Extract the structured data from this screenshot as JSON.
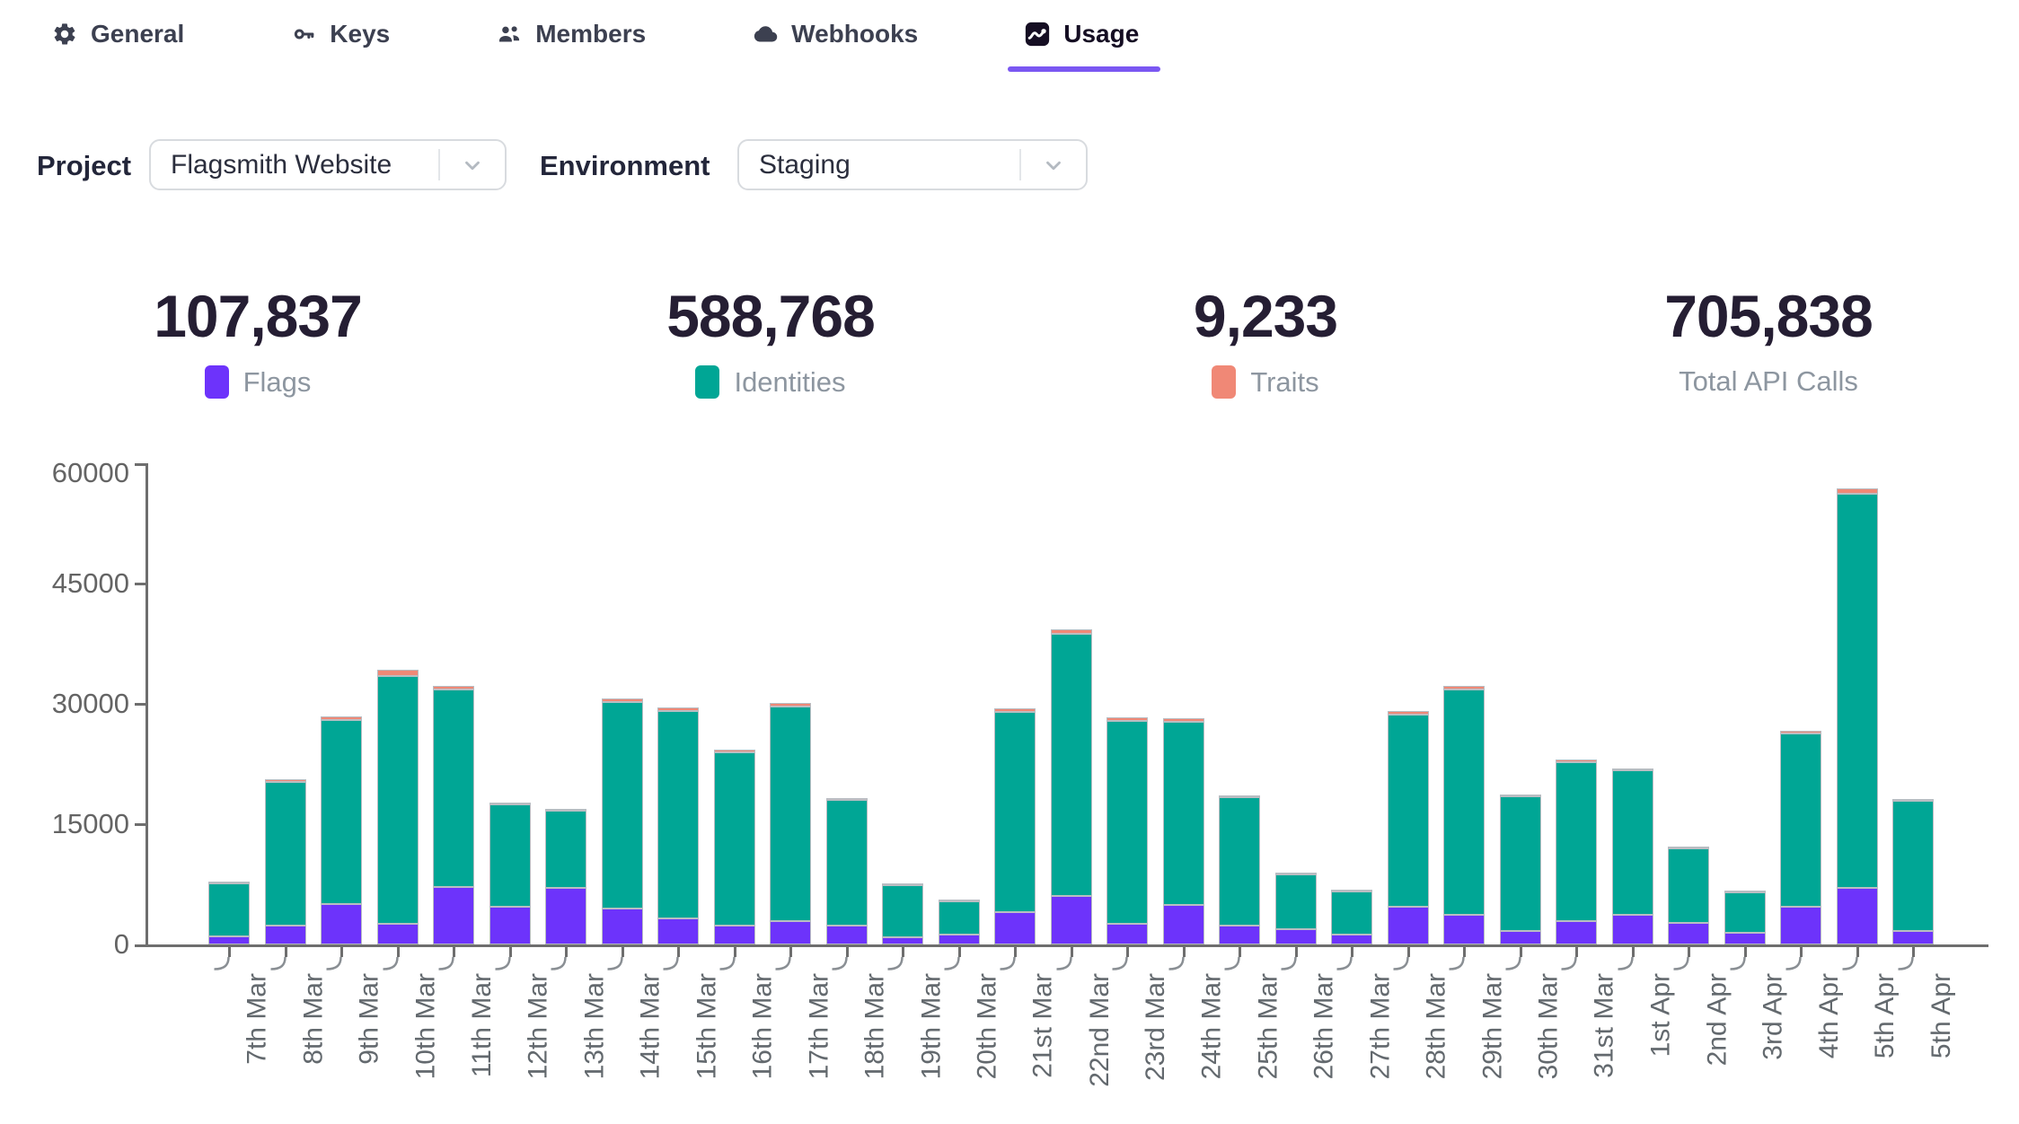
{
  "accent_color": "#7a57f2",
  "tabs": [
    {
      "label": "General",
      "icon": "gear-icon"
    },
    {
      "label": "Keys",
      "icon": "key-icon"
    },
    {
      "label": "Members",
      "icon": "members-icon"
    },
    {
      "label": "Webhooks",
      "icon": "cloud-icon"
    },
    {
      "label": "Usage",
      "icon": "chart-icon",
      "active": true
    }
  ],
  "filters": {
    "project_label": "Project",
    "project_value": "Flagsmith Website",
    "environment_label": "Environment",
    "environment_value": "Staging"
  },
  "stats": [
    {
      "value": "107,837",
      "label": "Flags",
      "swatch": "#6d33fb"
    },
    {
      "value": "588,768",
      "label": "Identities",
      "swatch": "#00a695"
    },
    {
      "value": "9,233",
      "label": "Traits",
      "swatch": "#f08876"
    },
    {
      "value": "705,838",
      "label": "Total API Calls",
      "swatch": null
    }
  ],
  "chart_data": {
    "type": "bar",
    "stacked": true,
    "title": "",
    "xlabel": "",
    "ylabel": "",
    "ylim": [
      0,
      60000
    ],
    "yticks": [
      0,
      15000,
      30000,
      45000,
      60000
    ],
    "grid": false,
    "legend_position": "above-chart (stat captions)",
    "categories": [
      "7th Mar",
      "8th Mar",
      "9th Mar",
      "10th Mar",
      "11th Mar",
      "12th Mar",
      "13th Mar",
      "14th Mar",
      "15th Mar",
      "16th Mar",
      "17th Mar",
      "18th Mar",
      "19th Mar",
      "20th Mar",
      "21st Mar",
      "22nd Mar",
      "23rd Mar",
      "24th Mar",
      "25th Mar",
      "26th Mar",
      "27th Mar",
      "28th Mar",
      "29th Mar",
      "30th Mar",
      "31st Mar",
      "1st Apr",
      "2nd Apr",
      "3rd Apr",
      "4th Apr",
      "5th Apr",
      "5th Apr"
    ],
    "series": [
      {
        "name": "Flags",
        "color": "#6d33fb",
        "values": [
          1000,
          2400,
          5000,
          2600,
          7200,
          4700,
          7000,
          4500,
          3300,
          2300,
          2900,
          2300,
          950,
          1200,
          4000,
          6000,
          2600,
          4900,
          2400,
          1900,
          1200,
          4700,
          3700,
          1700,
          2900,
          3700,
          2700,
          1400,
          4700,
          7100,
          1700
        ]
      },
      {
        "name": "Identities",
        "color": "#00a695",
        "values": [
          6650,
          17950,
          23000,
          30950,
          24600,
          12800,
          9650,
          25800,
          25850,
          21600,
          26700,
          15700,
          6470,
          4140,
          24950,
          32700,
          25350,
          22850,
          16050,
          6800,
          5420,
          23900,
          28100,
          16750,
          19800,
          18050,
          9280,
          5040,
          21600,
          49100,
          16180
        ]
      },
      {
        "name": "Traits",
        "color": "#f08876",
        "values": [
          150,
          350,
          400,
          750,
          500,
          200,
          150,
          500,
          450,
          300,
          400,
          200,
          80,
          60,
          450,
          600,
          450,
          450,
          250,
          100,
          80,
          400,
          500,
          250,
          300,
          250,
          120,
          60,
          300,
          700,
          220
        ]
      }
    ]
  }
}
